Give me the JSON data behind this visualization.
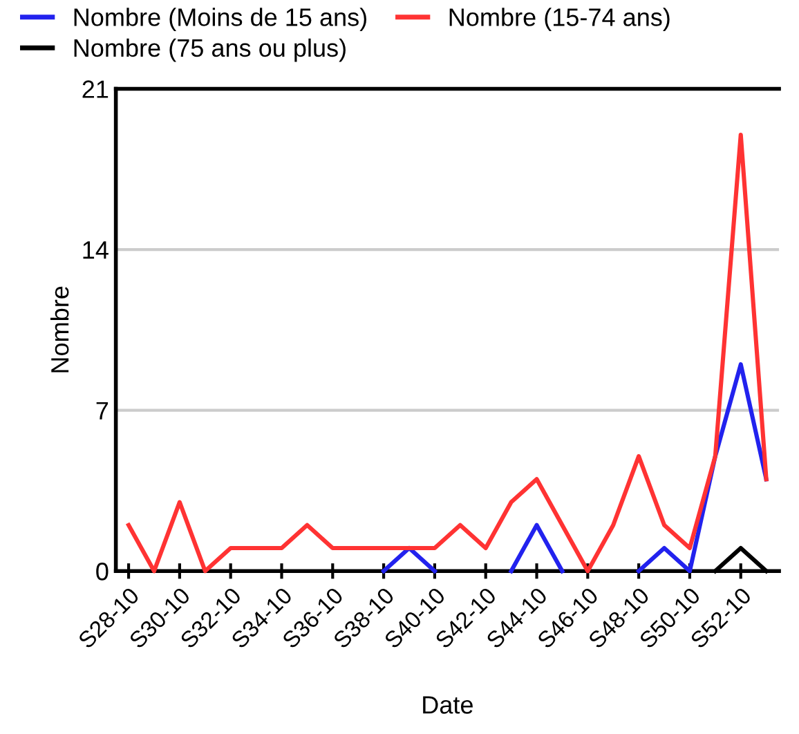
{
  "chart_data": {
    "type": "line",
    "xlabel": "Date",
    "ylabel": "Nombre",
    "categories": [
      "S28-10",
      null,
      "S30-10",
      null,
      "S32-10",
      null,
      "S34-10",
      null,
      "S36-10",
      null,
      "S38-10",
      null,
      "S40-10",
      null,
      "S42-10",
      null,
      "S44-10",
      null,
      "S46-10",
      null,
      "S48-10",
      null,
      "S50-10",
      null,
      "S52-10",
      null
    ],
    "series": [
      {
        "name": "Nombre (Moins de 15 ans)",
        "color": "#2222ee",
        "values": [
          null,
          null,
          null,
          null,
          null,
          null,
          null,
          null,
          null,
          null,
          0,
          1,
          0,
          null,
          null,
          0,
          2,
          0,
          null,
          null,
          0,
          1,
          0,
          5,
          9,
          4
        ]
      },
      {
        "name": "Nombre (15-74 ans)",
        "color": "#ff3333",
        "values": [
          2,
          0,
          3,
          0,
          1,
          1,
          1,
          2,
          1,
          1,
          1,
          1,
          1,
          2,
          1,
          3,
          4,
          2,
          0,
          2,
          5,
          2,
          1,
          5,
          19,
          4
        ]
      },
      {
        "name": "Nombre (75 ans ou plus)",
        "color": "#000000",
        "values": [
          null,
          null,
          null,
          null,
          null,
          null,
          null,
          null,
          null,
          null,
          null,
          null,
          null,
          null,
          null,
          null,
          null,
          null,
          null,
          null,
          null,
          null,
          null,
          0,
          1,
          0
        ]
      }
    ],
    "ylim": [
      0,
      21
    ],
    "yticks": [
      0,
      7,
      14,
      21
    ],
    "grid": "y",
    "legend": "top",
    "marker": "none",
    "line_style": "solid"
  }
}
